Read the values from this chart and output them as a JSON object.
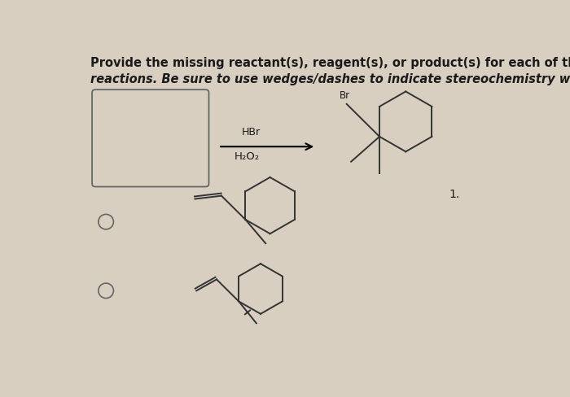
{
  "title_line1": "Provide the missing reactant(s), reagent(s), or product(s) for each of the following",
  "title_line2": "reactions. Be sure to use wedges/dashes to indicate stereochemistry where relevant.",
  "bg_color": "#d8cfc0",
  "text_color": "#1a1a1a",
  "reagent1_top": "HBr",
  "reagent1_bottom": "H₂O₂",
  "label_Br": "Br",
  "label_number": "1.",
  "title_fontsize": 10.5,
  "line_color": "#333333"
}
